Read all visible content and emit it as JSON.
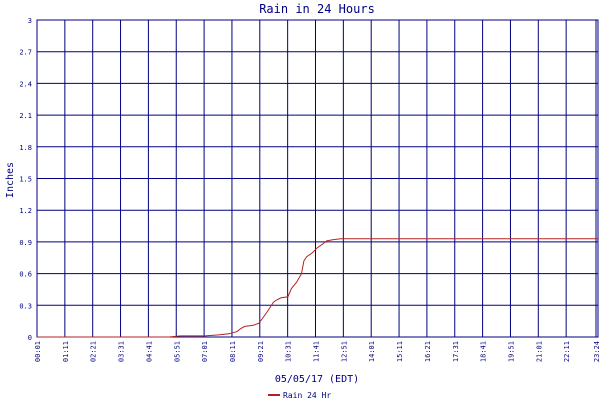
{
  "chart_data": {
    "type": "line",
    "title": "Rain in 24 Hours",
    "xlabel": "05/05/17 (EDT)",
    "ylabel": "Inches",
    "ylim": [
      0,
      3
    ],
    "yticks": [
      "0",
      "0.3",
      "0.6",
      "0.9",
      "1.2",
      "1.5",
      "1.8",
      "2.1",
      "2.4",
      "2.7",
      "3"
    ],
    "xticks": [
      "00:01",
      "01:11",
      "02:21",
      "03:31",
      "04:41",
      "05:51",
      "07:01",
      "08:11",
      "09:21",
      "10:31",
      "11:41",
      "12:51",
      "14:01",
      "15:11",
      "16:21",
      "17:31",
      "18:41",
      "19:51",
      "21:01",
      "22:11",
      "23:24"
    ],
    "grid": true,
    "legend_position": "bottom-center",
    "colors": {
      "series": "#b22222",
      "grid": "#000080",
      "text": "#000080"
    },
    "series": [
      {
        "name": "Rain 24 Hr",
        "points": [
          [
            0,
            0.0
          ],
          [
            300,
            0.0
          ],
          [
            330,
            0.0
          ],
          [
            360,
            0.01
          ],
          [
            420,
            0.01
          ],
          [
            455,
            0.02
          ],
          [
            480,
            0.03
          ],
          [
            500,
            0.05
          ],
          [
            510,
            0.08
          ],
          [
            520,
            0.1
          ],
          [
            540,
            0.11
          ],
          [
            555,
            0.13
          ],
          [
            565,
            0.18
          ],
          [
            578,
            0.25
          ],
          [
            592,
            0.33
          ],
          [
            600,
            0.35
          ],
          [
            610,
            0.37
          ],
          [
            628,
            0.38
          ],
          [
            637,
            0.46
          ],
          [
            650,
            0.52
          ],
          [
            662,
            0.6
          ],
          [
            668,
            0.72
          ],
          [
            675,
            0.76
          ],
          [
            690,
            0.8
          ],
          [
            700,
            0.84
          ],
          [
            715,
            0.88
          ],
          [
            725,
            0.91
          ],
          [
            740,
            0.92
          ],
          [
            760,
            0.93
          ],
          [
            1300,
            0.93
          ],
          [
            1404,
            0.93
          ]
        ]
      }
    ]
  }
}
